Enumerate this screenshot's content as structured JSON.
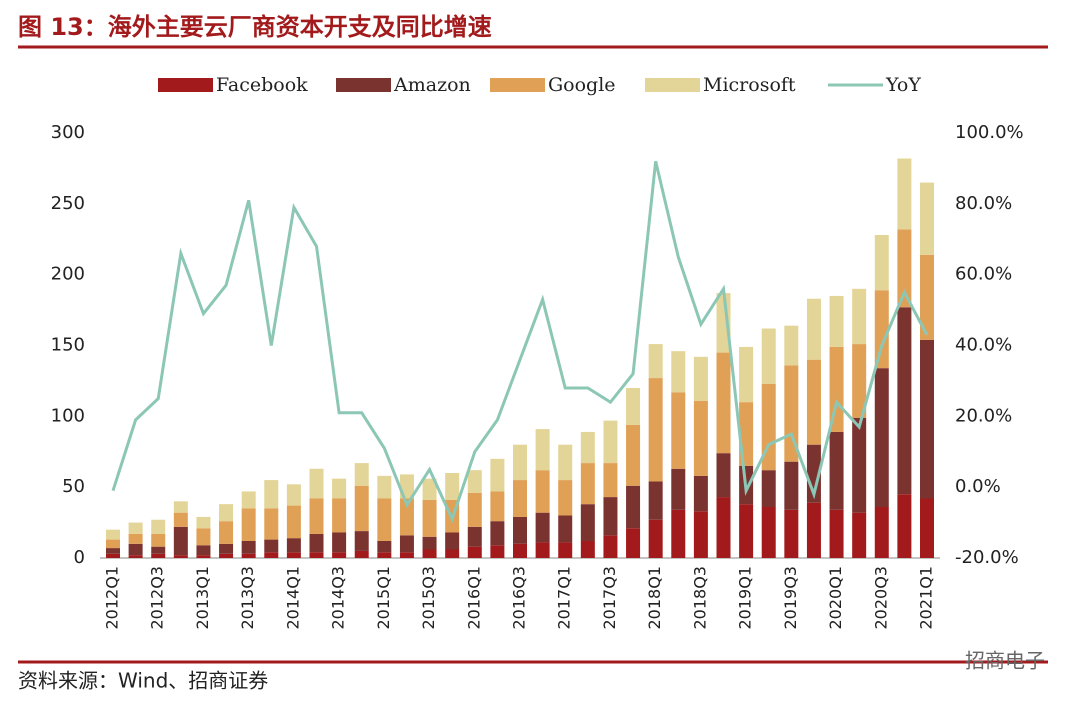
{
  "chart_data": {
    "type": "bar",
    "title": "图 13：海外主要云厂商资本开支及同比增速",
    "source": "资料来源：Wind、招商证券",
    "watermark": "招商电子",
    "stacked": true,
    "categories": [
      "2012Q1",
      null,
      "2012Q3",
      null,
      "2013Q1",
      null,
      "2013Q3",
      null,
      "2014Q1",
      null,
      "2014Q3",
      null,
      "2015Q1",
      null,
      "2015Q3",
      null,
      "2016Q1",
      null,
      "2016Q3",
      null,
      "2017Q1",
      null,
      "2017Q3",
      null,
      "2018Q1",
      null,
      "2018Q3",
      null,
      "2019Q1",
      null,
      "2019Q3",
      null,
      "2020Q1",
      null,
      "2020Q3",
      null,
      "2021Q1"
    ],
    "series": [
      {
        "name": "Facebook",
        "color": "#a31a1c",
        "values": [
          3,
          2,
          3,
          2,
          2,
          3,
          3,
          4,
          4,
          4,
          4,
          5,
          4,
          4,
          6,
          6,
          8,
          9,
          10,
          11,
          11,
          12,
          16,
          21,
          27,
          34,
          33,
          43,
          38,
          36,
          34,
          39,
          34,
          32,
          36,
          45,
          42
        ]
      },
      {
        "name": "Amazon",
        "color": "#7b3330",
        "values": [
          4,
          8,
          5,
          20,
          7,
          7,
          9,
          9,
          10,
          13,
          14,
          14,
          8,
          12,
          9,
          12,
          14,
          17,
          19,
          21,
          19,
          26,
          27,
          30,
          27,
          29,
          25,
          31,
          27,
          26,
          34,
          41,
          55,
          67,
          98,
          132,
          112
        ]
      },
      {
        "name": "Google",
        "color": "#e0a055",
        "values": [
          6,
          7,
          9,
          10,
          12,
          16,
          23,
          22,
          23,
          25,
          24,
          32,
          30,
          26,
          26,
          23,
          24,
          21,
          26,
          30,
          25,
          29,
          24,
          43,
          73,
          54,
          53,
          71,
          45,
          61,
          68,
          60,
          60,
          52,
          55,
          55,
          60
        ]
      },
      {
        "name": "Microsoft",
        "color": "#e3d497",
        "values": [
          7,
          8,
          10,
          8,
          8,
          12,
          12,
          20,
          15,
          21,
          14,
          16,
          16,
          17,
          15,
          19,
          16,
          23,
          25,
          29,
          25,
          22,
          30,
          26,
          24,
          29,
          31,
          42,
          39,
          39,
          28,
          43,
          36,
          39,
          39,
          50,
          51
        ]
      },
      {
        "name": "YoY",
        "color": "#8cc7b6",
        "type": "line",
        "axis": "y2",
        "values": [
          -1,
          19,
          25,
          66,
          49,
          57,
          81,
          40,
          79,
          68,
          21,
          21,
          11,
          -5,
          5,
          -9,
          10,
          19,
          36,
          53,
          28,
          28,
          24,
          32,
          92,
          65,
          46,
          56,
          -1,
          12,
          15,
          -2,
          24,
          17,
          40,
          55,
          43
        ]
      }
    ],
    "ylim": [
      0,
      300
    ],
    "yticks": [
      0,
      50,
      100,
      150,
      200,
      250,
      300
    ],
    "y2lim": [
      -20,
      100
    ],
    "y2ticks": [
      {
        "value": -20,
        "label": "-20.0%"
      },
      {
        "value": 0,
        "label": "0.0%"
      },
      {
        "value": 20,
        "label": "20.0%"
      },
      {
        "value": 40,
        "label": "40.0%"
      },
      {
        "value": 60,
        "label": "60.0%"
      },
      {
        "value": 80,
        "label": "80.0%"
      },
      {
        "value": 100,
        "label": "100.0%"
      }
    ],
    "legend": "top"
  }
}
